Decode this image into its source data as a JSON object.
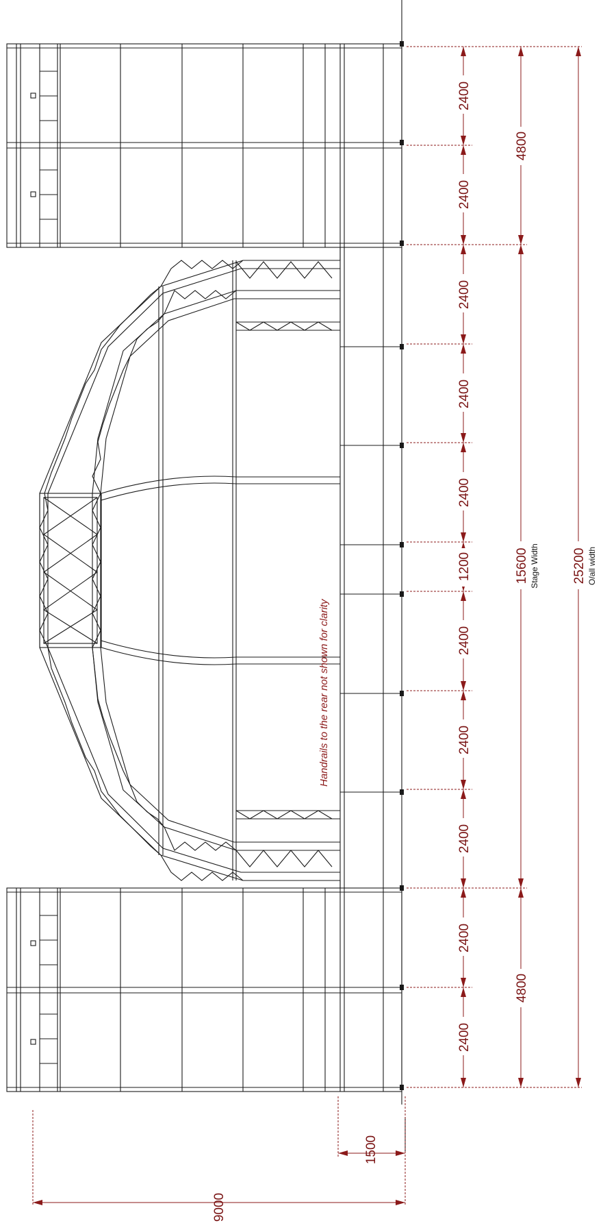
{
  "colors": {
    "structure": "#1a1a1a",
    "dimension": "#8b1a1a",
    "background": "#ffffff"
  },
  "note": "Handrails to the rear not shown for clarity",
  "dims": {
    "bay_2400": "2400",
    "bay_1200": "1200",
    "wing_4800": "4800",
    "stage_15600": "15600",
    "stage_caption": "Stage Width",
    "overall_25200": "25200",
    "overall_caption": "O/all width",
    "depth_1500": "1500",
    "depth_9000": "9000"
  }
}
